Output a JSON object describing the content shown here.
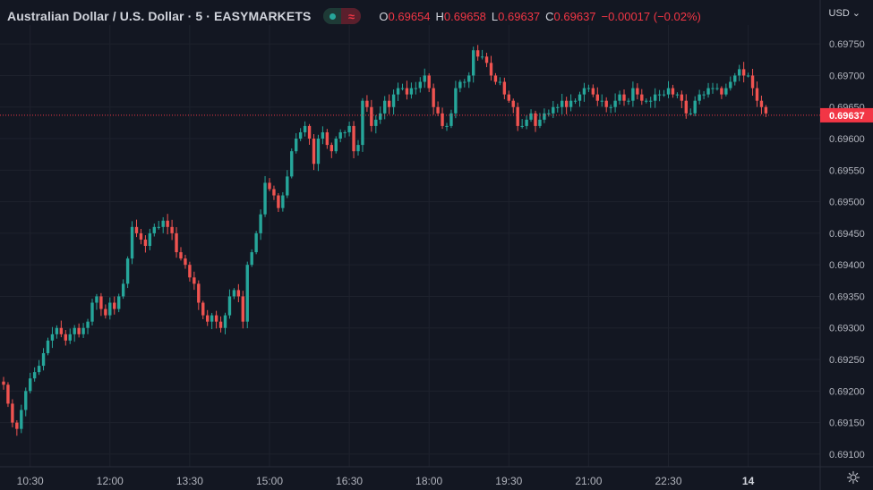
{
  "header": {
    "title": "Australian Dollar / U.S. Dollar · 5 · EASYMARKETS",
    "wave_symbol": "≈",
    "ohlc": {
      "o_label": "O",
      "o": "0.69654",
      "h_label": "H",
      "h": "0.69658",
      "l_label": "L",
      "l": "0.69637",
      "c_label": "C",
      "c": "0.69637",
      "change": "−0.00017 (−0.02%)"
    },
    "currency": "USD",
    "currency_chevron": "⌄"
  },
  "colors": {
    "up": "#26a69a",
    "down": "#ef5350",
    "background": "#131722",
    "grid": "#1e222d",
    "text": "#b2b5be",
    "last_price_bg": "#f23645"
  },
  "chart_data": {
    "type": "candlestick",
    "ylim": [
      0.6908,
      0.6978
    ],
    "y_ticks": [
      "0.69750",
      "0.69700",
      "0.69650",
      "0.69600",
      "0.69550",
      "0.69500",
      "0.69450",
      "0.69400",
      "0.69350",
      "0.69300",
      "0.69250",
      "0.69200",
      "0.69150",
      "0.69100"
    ],
    "x_ticks": [
      {
        "label": "10:30",
        "index": 6
      },
      {
        "label": "12:00",
        "index": 24
      },
      {
        "label": "13:30",
        "index": 42
      },
      {
        "label": "15:00",
        "index": 60
      },
      {
        "label": "16:30",
        "index": 78
      },
      {
        "label": "18:00",
        "index": 96
      },
      {
        "label": "19:30",
        "index": 114
      },
      {
        "label": "21:00",
        "index": 132
      },
      {
        "label": "22:30",
        "index": 150
      },
      {
        "label": "14",
        "index": 168
      }
    ],
    "last_price": "0.69637",
    "last_value": 0.69637,
    "closes": [
      0.6921,
      0.6918,
      0.6915,
      0.6914,
      0.6917,
      0.692,
      0.6922,
      0.6923,
      0.6924,
      0.6926,
      0.6928,
      0.6929,
      0.693,
      0.6929,
      0.6928,
      0.6929,
      0.693,
      0.6929,
      0.693,
      0.6931,
      0.6934,
      0.6935,
      0.6933,
      0.6932,
      0.6934,
      0.6933,
      0.6935,
      0.6937,
      0.6941,
      0.6946,
      0.6945,
      0.6944,
      0.6943,
      0.6945,
      0.6946,
      0.6946,
      0.6947,
      0.6946,
      0.6945,
      0.6942,
      0.6941,
      0.694,
      0.6938,
      0.6937,
      0.6934,
      0.6932,
      0.6931,
      0.6932,
      0.6931,
      0.693,
      0.6932,
      0.6935,
      0.6936,
      0.6935,
      0.6931,
      0.694,
      0.6942,
      0.6945,
      0.6948,
      0.6953,
      0.6952,
      0.6951,
      0.6949,
      0.6951,
      0.6954,
      0.6958,
      0.696,
      0.6961,
      0.6962,
      0.696,
      0.6956,
      0.696,
      0.6961,
      0.6959,
      0.6958,
      0.696,
      0.6961,
      0.6961,
      0.6962,
      0.6958,
      0.6959,
      0.6966,
      0.6965,
      0.6962,
      0.6963,
      0.6964,
      0.6966,
      0.6965,
      0.6967,
      0.6968,
      0.6968,
      0.6967,
      0.6968,
      0.6968,
      0.6969,
      0.697,
      0.6968,
      0.6965,
      0.6964,
      0.6962,
      0.6962,
      0.6964,
      0.6968,
      0.6969,
      0.6969,
      0.697,
      0.6974,
      0.6973,
      0.6973,
      0.6972,
      0.697,
      0.6969,
      0.6969,
      0.6967,
      0.6966,
      0.6965,
      0.6962,
      0.6962,
      0.6963,
      0.6964,
      0.6962,
      0.6963,
      0.6964,
      0.6964,
      0.6965,
      0.6965,
      0.6966,
      0.6965,
      0.6966,
      0.6966,
      0.6967,
      0.6968,
      0.6968,
      0.6967,
      0.6966,
      0.6966,
      0.6965,
      0.6965,
      0.6966,
      0.6967,
      0.6966,
      0.6966,
      0.6968,
      0.6967,
      0.6966,
      0.6966,
      0.6966,
      0.6967,
      0.6967,
      0.6967,
      0.6968,
      0.6967,
      0.6967,
      0.6966,
      0.6964,
      0.6964,
      0.6966,
      0.6967,
      0.6967,
      0.6968,
      0.6968,
      0.6968,
      0.6967,
      0.6968,
      0.6969,
      0.697,
      0.6971,
      0.697,
      0.697,
      0.6968,
      0.6966,
      0.6965,
      0.6964
    ]
  }
}
